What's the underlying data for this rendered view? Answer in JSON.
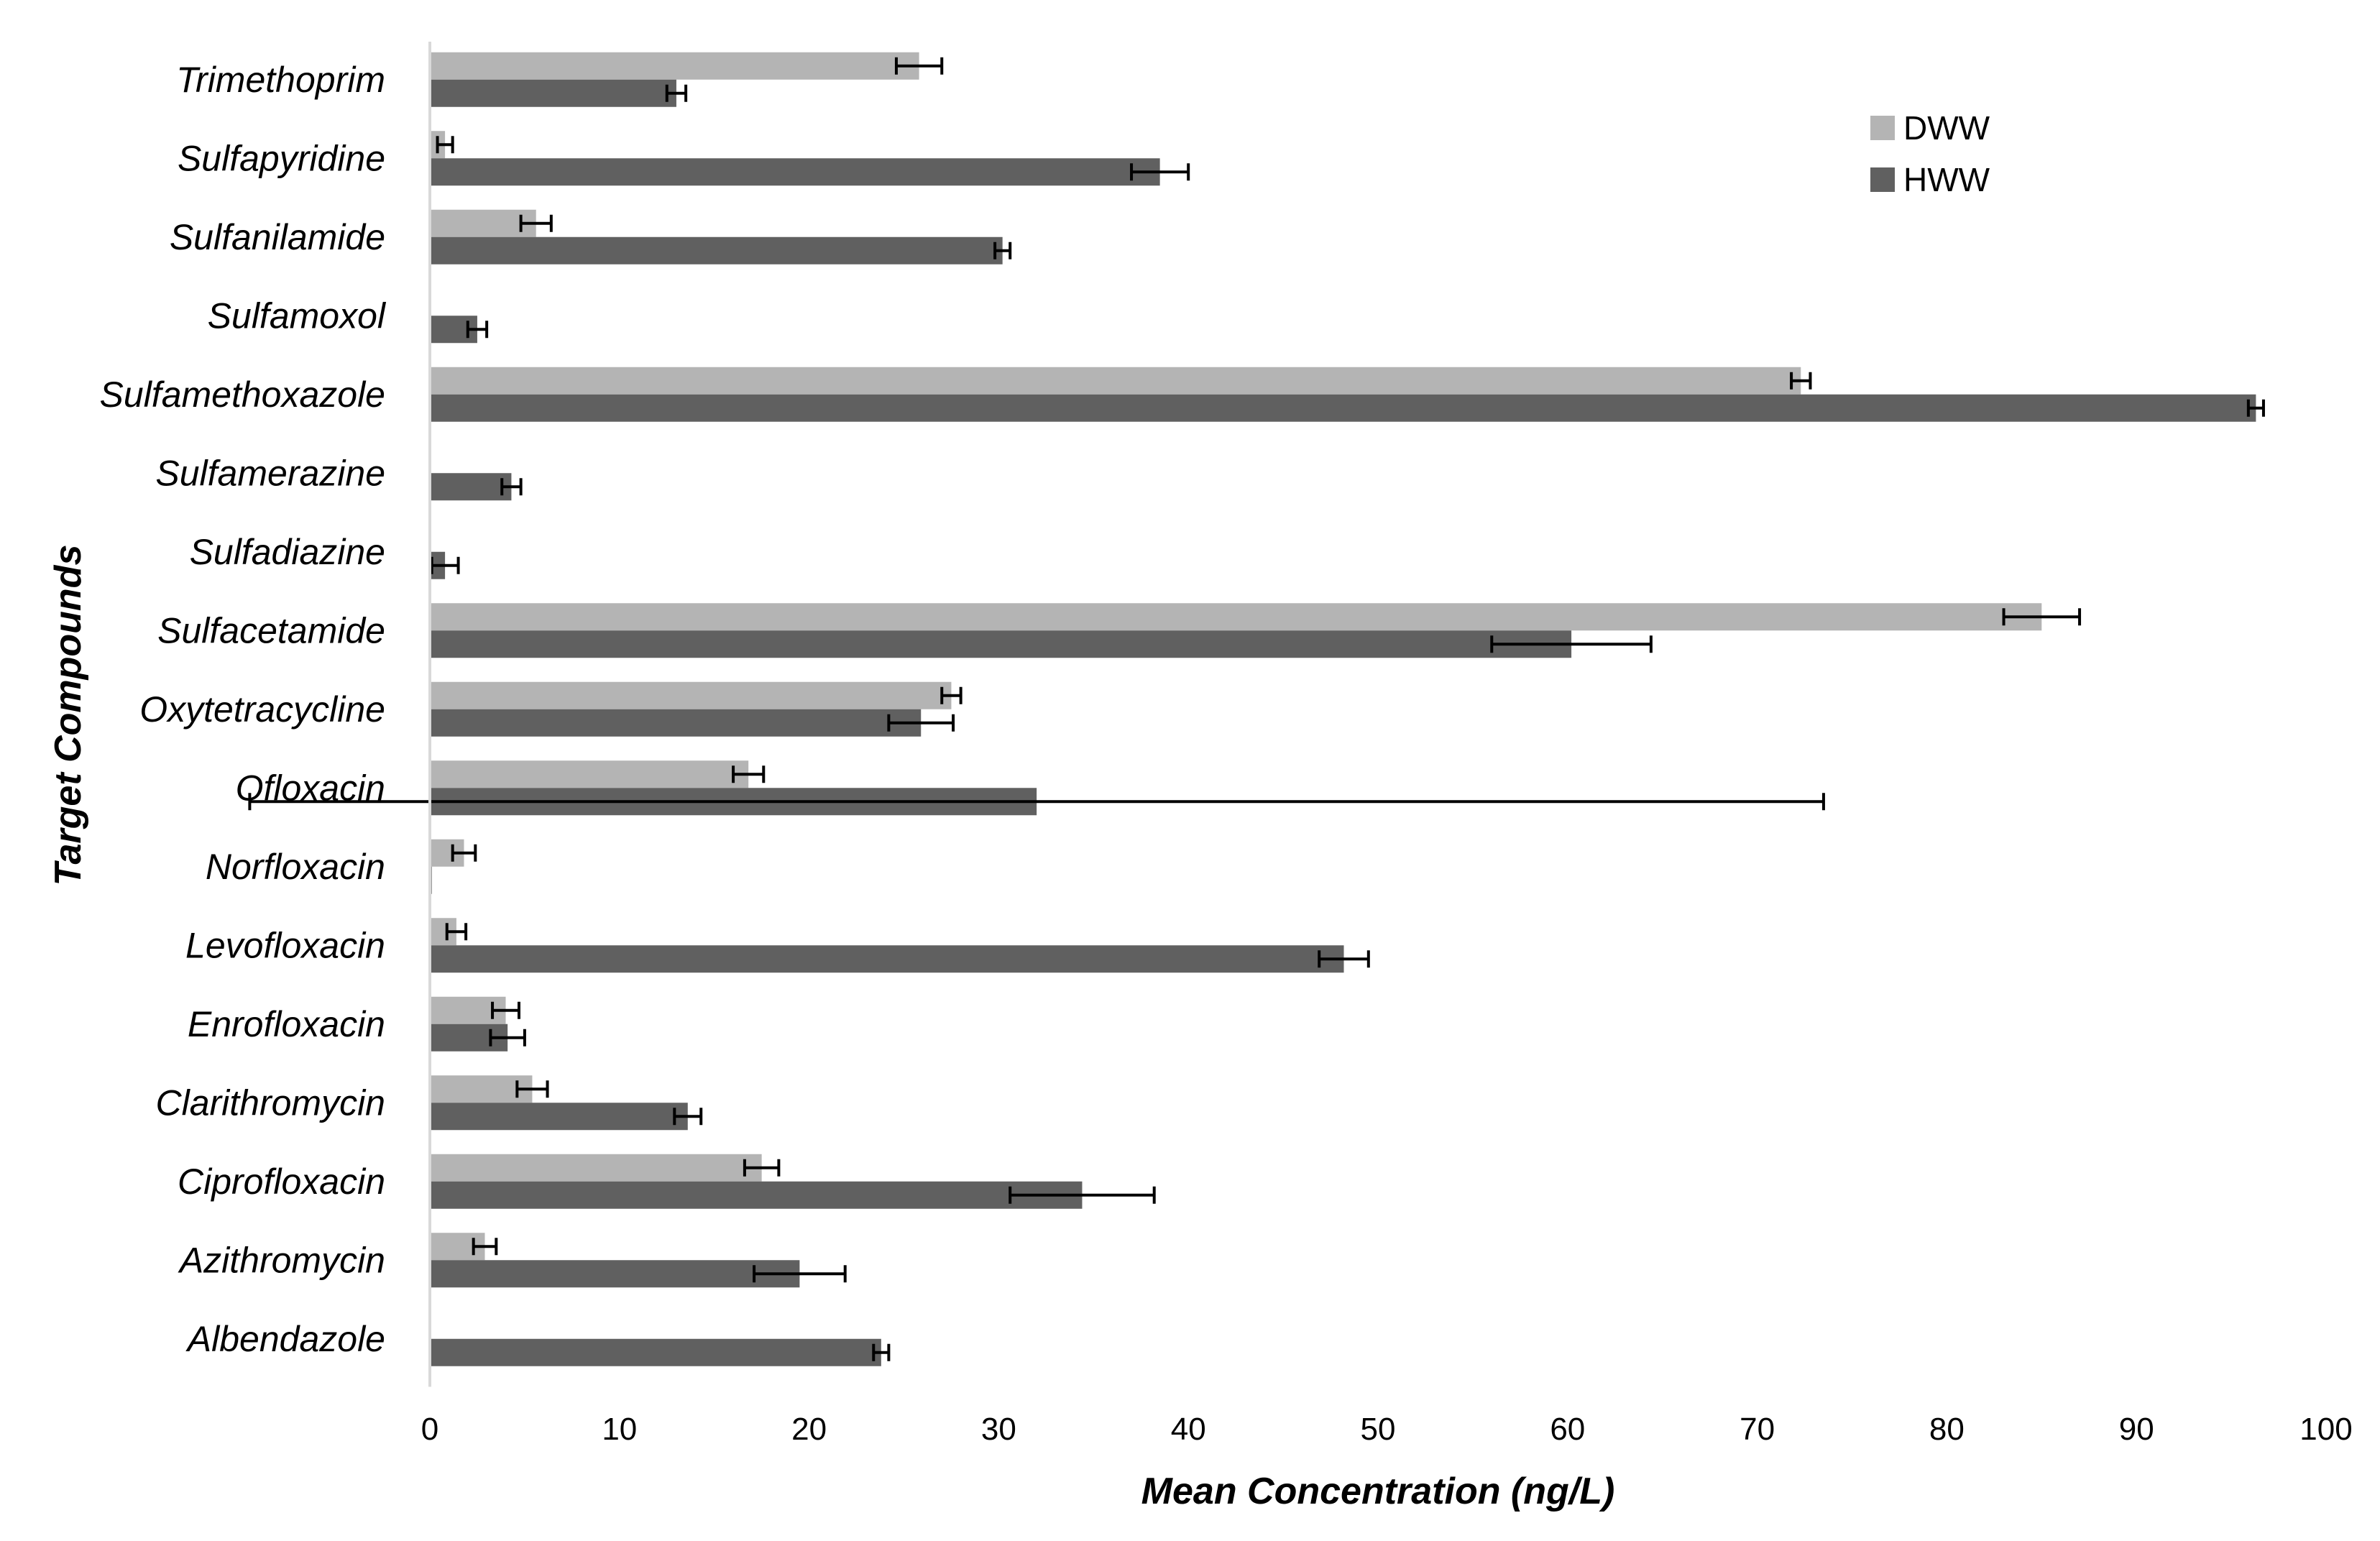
{
  "chart_data": {
    "type": "bar",
    "orientation": "horizontal",
    "xlabel": "Mean Concentration (ng/L)",
    "ylabel": "Target Compounds",
    "xlim": [
      0,
      100
    ],
    "xticks": [
      0,
      10,
      20,
      30,
      40,
      50,
      60,
      70,
      80,
      90,
      100
    ],
    "grid": false,
    "legend_position": "top-right",
    "categories": [
      "Trimethoprim",
      "Sulfapyridine",
      "Sulfanilamide",
      "Sulfamoxol",
      "Sulfamethoxazole",
      "Sulfamerazine",
      "Sulfadiazine",
      "Sulfacetamide",
      "Oxytetracycline",
      "Ofloxacin",
      "Norfloxacin",
      "Levofloxacin",
      "Enrofloxacin",
      "Clarithromycin",
      "Ciprofloxacin",
      "Azithromycin",
      "Albendazole"
    ],
    "series": [
      {
        "name": "DWW",
        "color": "#b4b4b4",
        "values": [
          25.8,
          0.8,
          5.6,
          0,
          72.3,
          0,
          0,
          85.0,
          27.5,
          16.8,
          1.8,
          1.4,
          4.0,
          5.4,
          17.5,
          2.9,
          0
        ],
        "error": [
          1.2,
          0.4,
          0.8,
          0,
          0.5,
          0,
          0,
          2.0,
          0.5,
          0.8,
          0.6,
          0.5,
          0.7,
          0.8,
          0.9,
          0.6,
          0
        ]
      },
      {
        "name": "HWW",
        "color": "#606060",
        "values": [
          13.0,
          38.5,
          30.2,
          2.5,
          96.3,
          4.3,
          0.8,
          60.2,
          25.9,
          32.0,
          0.1,
          48.2,
          4.1,
          13.6,
          34.4,
          19.5,
          23.8
        ],
        "error": [
          0.5,
          1.5,
          0.4,
          0.5,
          0.4,
          0.5,
          0.7,
          4.2,
          1.7,
          41.5,
          0,
          1.3,
          0.9,
          0.7,
          3.8,
          2.4,
          0.4
        ]
      }
    ]
  }
}
